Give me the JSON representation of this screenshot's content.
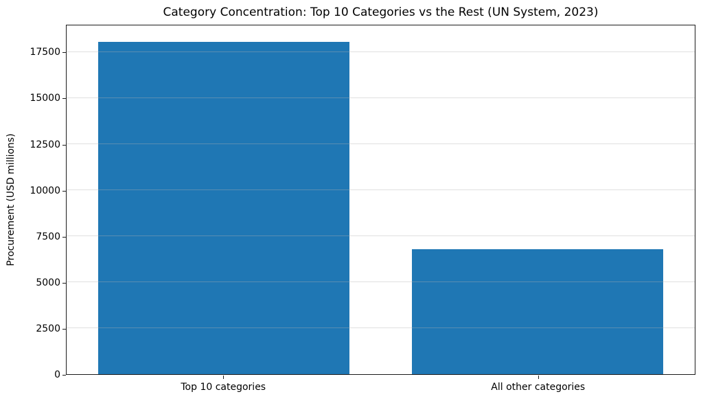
{
  "chart_data": {
    "type": "bar",
    "title": "Category Concentration: Top 10 Categories vs the Rest (UN System, 2023)",
    "categories": [
      "Top 10 categories",
      "All other categories"
    ],
    "values": [
      18100,
      6800
    ],
    "xlabel": "",
    "ylabel": "Procurement (USD millions)",
    "ylim": [
      0,
      19005
    ],
    "yticks": [
      0,
      2500,
      5000,
      7500,
      10000,
      12500,
      15000,
      17500
    ],
    "bar_color": "#1f77b4",
    "grid": "horizontal",
    "grid_color": "rgba(176,176,176,0.4)",
    "grid_over_bars": true,
    "legend": "none",
    "background": "#ffffff",
    "spine_color": "#1a1a1a"
  }
}
